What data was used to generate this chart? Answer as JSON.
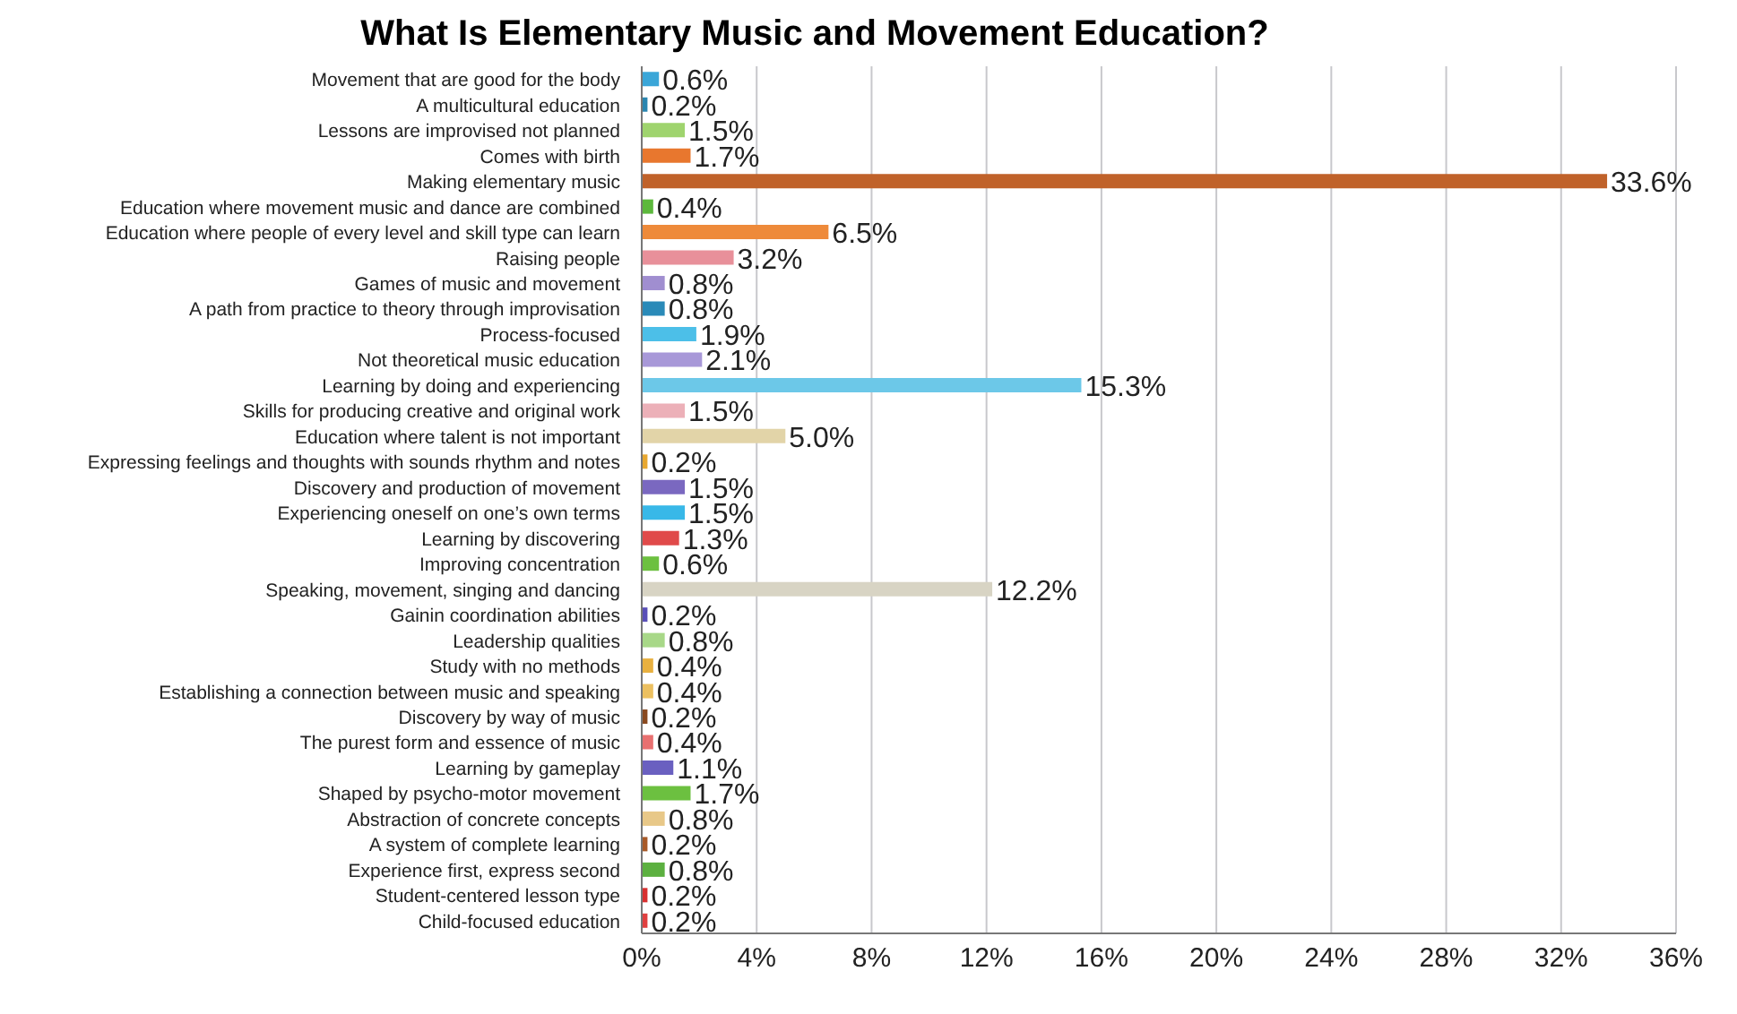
{
  "chart_data": {
    "type": "bar",
    "orientation": "horizontal",
    "title": "What Is Elementary Music and Movement Education?",
    "categories": [
      "Movement that are good for the body",
      "A multicultural education",
      "Lessons are improvised not planned",
      "Comes with birth",
      "Making elementary music",
      "Education where movement music and dance are combined",
      "Education where people of every level and skill type can learn",
      "Raising people",
      "Games of music and movement",
      "A path from practice to theory through improvisation",
      "Process-focused",
      "Not theoretical music education",
      "Learning by doing and experiencing",
      "Skills for producing creative and original work",
      "Education where talent is not important",
      "Expressing feelings and thoughts with sounds rhythm and notes",
      "Discovery and production of movement",
      "Experiencing oneself on one’s own terms",
      "Learning by discovering",
      "Improving concentration",
      "Speaking, movement, singing and dancing",
      "Gainin coordination abilities",
      "Leadership qualities",
      "Study with no methods",
      "Establishing a connection between music and speaking",
      "Discovery by way of music",
      "The purest form and essence of music",
      "Learning by gameplay",
      "Shaped by psycho-motor movement",
      "Abstraction of concrete concepts",
      "A system of complete learning",
      "Experience first, express second",
      "Student-centered lesson type",
      "Child-focused education"
    ],
    "values": [
      0.6,
      0.2,
      1.5,
      1.7,
      33.6,
      0.4,
      6.5,
      3.2,
      0.8,
      0.8,
      1.9,
      2.1,
      15.3,
      1.5,
      5.0,
      0.2,
      1.5,
      1.5,
      1.3,
      0.6,
      12.2,
      0.2,
      0.8,
      0.4,
      0.4,
      0.2,
      0.4,
      1.1,
      1.7,
      0.8,
      0.2,
      0.8,
      0.2,
      0.2
    ],
    "value_labels": [
      "0.6%",
      "0.2%",
      "1.5%",
      "1.7%",
      "33.6%",
      "0.4%",
      "6.5%",
      "3.2%",
      "0.8%",
      "0.8%",
      "1.9%",
      "2.1%",
      "15.3%",
      "1.5%",
      "5.0%",
      "0.2%",
      "1.5%",
      "1.5%",
      "1.3%",
      "0.6%",
      "12.2%",
      "0.2%",
      "0.8%",
      "0.4%",
      "0.4%",
      "0.2%",
      "0.4%",
      "1.1%",
      "1.7%",
      "0.8%",
      "0.2%",
      "0.8%",
      "0.2%",
      "0.2%"
    ],
    "colors": [
      "#3aa6d8",
      "#2a86b0",
      "#9fd46e",
      "#e8772e",
      "#c0622a",
      "#5cb83c",
      "#ee8a3a",
      "#e8909a",
      "#a08ed0",
      "#2a8ab8",
      "#4cbfe8",
      "#a898d8",
      "#6cc8e8",
      "#ecb0b8",
      "#e2d4a8",
      "#e8a830",
      "#7a68c0",
      "#38b8e8",
      "#e04a4a",
      "#6cc040",
      "#d8d4c4",
      "#5a50b8",
      "#a8d888",
      "#e8b040",
      "#ecc060",
      "#8a4a20",
      "#e87070",
      "#6a60c0",
      "#6cc040",
      "#e8c888",
      "#a85a28",
      "#5cb040",
      "#d83030",
      "#e04040"
    ],
    "xlim": [
      0,
      36
    ],
    "xticks": [
      {
        "value": 0,
        "label": "0%"
      },
      {
        "value": 4,
        "label": "4%"
      },
      {
        "value": 8,
        "label": "8%"
      },
      {
        "value": 12,
        "label": "12%"
      },
      {
        "value": 16,
        "label": "16%"
      },
      {
        "value": 20,
        "label": "20%"
      },
      {
        "value": 24,
        "label": "24%"
      },
      {
        "value": 28,
        "label": "28%"
      },
      {
        "value": 32,
        "label": "32%"
      },
      {
        "value": 36,
        "label": "36%"
      }
    ],
    "grid": "x"
  }
}
